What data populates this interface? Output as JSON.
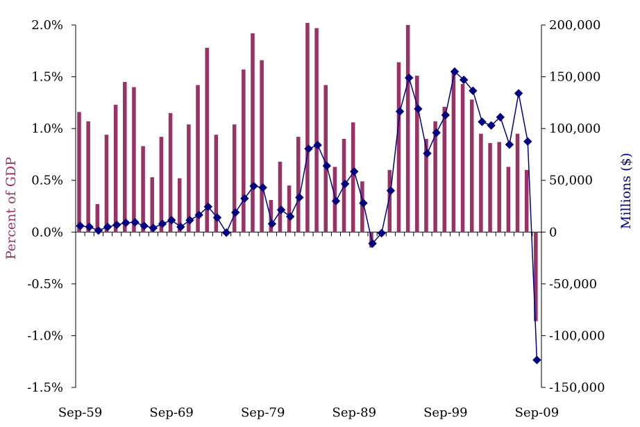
{
  "chart_data": {
    "type": "bar+line",
    "title": "",
    "xlabel": "",
    "ylabel_left": "Percent of GDP",
    "ylabel_right": "Millions ($)",
    "categories": [
      "Sep-59",
      "Sep-60",
      "Sep-61",
      "Sep-62",
      "Sep-63",
      "Sep-64",
      "Sep-65",
      "Sep-66",
      "Sep-67",
      "Sep-68",
      "Sep-69",
      "Sep-70",
      "Sep-71",
      "Sep-72",
      "Sep-73",
      "Sep-74",
      "Sep-75",
      "Sep-76",
      "Sep-77",
      "Sep-78",
      "Sep-79",
      "Sep-80",
      "Sep-81",
      "Sep-82",
      "Sep-83",
      "Sep-84",
      "Sep-85",
      "Sep-86",
      "Sep-87",
      "Sep-88",
      "Sep-89",
      "Sep-90",
      "Sep-91",
      "Sep-92",
      "Sep-93",
      "Sep-94",
      "Sep-95",
      "Sep-96",
      "Sep-97",
      "Sep-98",
      "Sep-99",
      "Sep-00",
      "Sep-01",
      "Sep-02",
      "Sep-03",
      "Sep-04",
      "Sep-05",
      "Sep-06",
      "Sep-07",
      "Sep-08",
      "Sep-09"
    ],
    "x_tick_labels": [
      "Sep-59",
      "Sep-69",
      "Sep-79",
      "Sep-89",
      "Sep-99",
      "Sep-09"
    ],
    "x_tick_indices": [
      0,
      10,
      20,
      30,
      40,
      50
    ],
    "left_axis": {
      "min": -1.5,
      "max": 2.0,
      "step": 0.5,
      "tick_labels": [
        "-1.5%",
        "-1.0%",
        "-0.5%",
        "0.0%",
        "0.5%",
        "1.0%",
        "1.5%",
        "2.0%"
      ]
    },
    "right_axis": {
      "min": -150000,
      "max": 200000,
      "step": 50000,
      "tick_labels": [
        "-150,000",
        "-100,000",
        "-50,000",
        "0",
        "50,000",
        "100,000",
        "150,000",
        "200,000"
      ]
    },
    "series": [
      {
        "name": "Percent of GDP",
        "kind": "bar",
        "axis": "left",
        "color": "#993366",
        "values": [
          1.16,
          1.07,
          0.27,
          0.94,
          1.23,
          1.45,
          1.4,
          0.83,
          0.53,
          0.92,
          1.15,
          0.52,
          1.04,
          1.42,
          1.78,
          0.94,
          0.0,
          1.04,
          1.57,
          1.92,
          1.66,
          0.31,
          0.68,
          0.45,
          0.92,
          2.02,
          1.97,
          1.42,
          0.63,
          0.9,
          1.06,
          0.49,
          -0.15,
          -0.02,
          0.6,
          1.64,
          2.0,
          1.51,
          0.9,
          1.07,
          1.21,
          1.55,
          1.43,
          1.28,
          0.95,
          0.86,
          0.87,
          0.63,
          0.95,
          0.6,
          -0.86
        ]
      },
      {
        "name": "Millions ($)",
        "kind": "line",
        "axis": "right",
        "color": "#000080",
        "values": [
          6000,
          5000,
          1500,
          5000,
          7000,
          9000,
          9500,
          6000,
          4000,
          8000,
          11500,
          5000,
          11500,
          16500,
          24500,
          14000,
          -500,
          19000,
          32500,
          44500,
          43000,
          8000,
          21500,
          15000,
          33500,
          80500,
          84000,
          64000,
          30000,
          46500,
          58500,
          28000,
          -11000,
          -1000,
          40000,
          116500,
          149000,
          119000,
          76000,
          96000,
          113000,
          155000,
          147000,
          136500,
          106500,
          103000,
          111000,
          84500,
          134000,
          87500,
          -123500
        ]
      }
    ]
  }
}
